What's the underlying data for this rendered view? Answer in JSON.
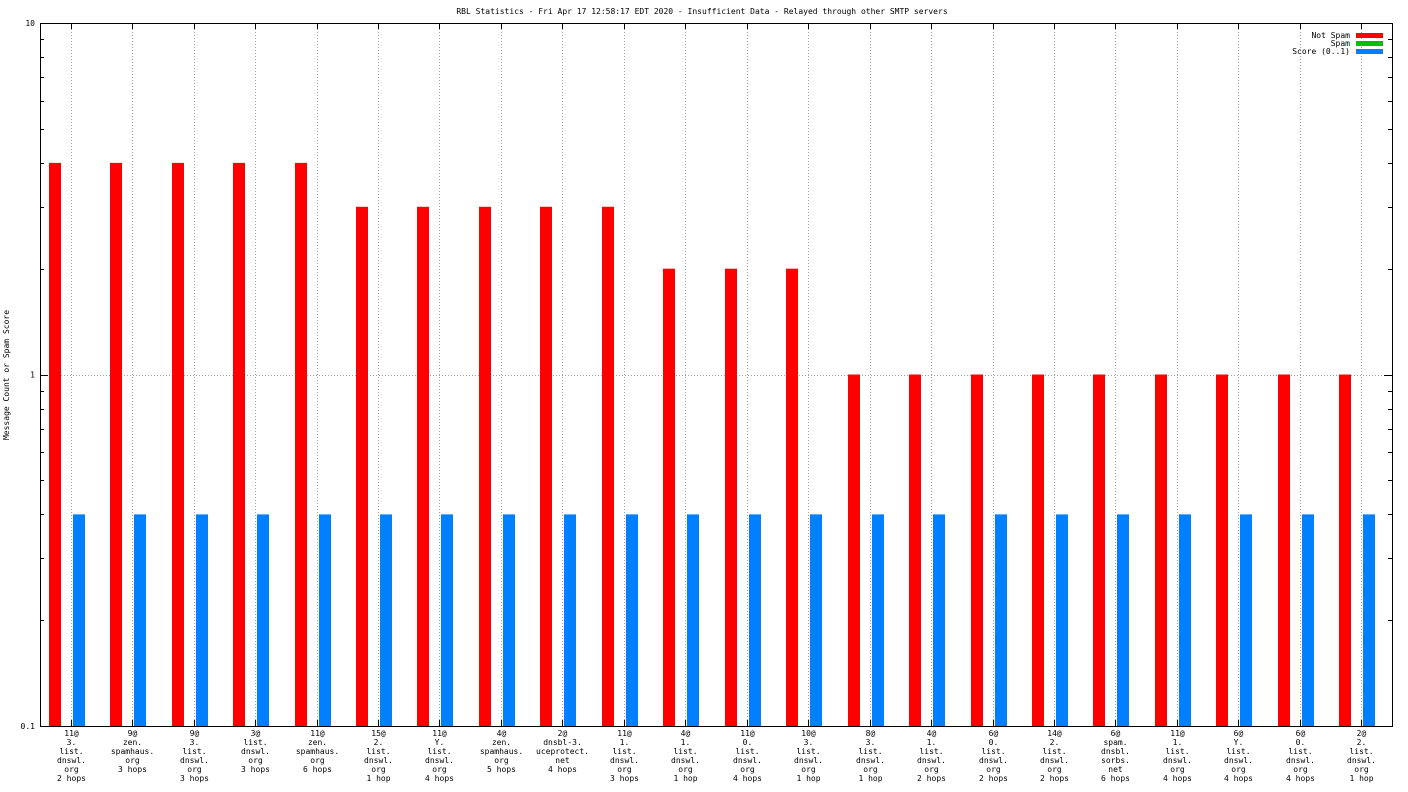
{
  "chart_data": {
    "type": "bar",
    "title": "RBL Statistics - Fri Apr 17 12:58:17 EDT 2020 - Insufficient Data - Relayed through other SMTP servers",
    "xlabel": "",
    "ylabel": "Message Count or Spam Score",
    "yscale": "log",
    "ylim": [
      0.1,
      10
    ],
    "yticks": [
      "0.1",
      "1",
      "10"
    ],
    "grid": true,
    "legend_position": "top-right",
    "categories": [
      [
        "11@",
        "3.",
        "list.",
        "dnswl.",
        "org",
        "2 hops"
      ],
      [
        "9@",
        "zen.",
        "spamhaus.",
        "org",
        "3 hops"
      ],
      [
        "9@",
        "3.",
        "list.",
        "dnswl.",
        "org",
        "3 hops"
      ],
      [
        "3@",
        "list.",
        "dnswl.",
        "org",
        "3 hops"
      ],
      [
        "11@",
        "zen.",
        "spamhaus.",
        "org",
        "6 hops"
      ],
      [
        "15@",
        "2.",
        "list.",
        "dnswl.",
        "org",
        "1 hop"
      ],
      [
        "11@",
        "Y.",
        "list.",
        "dnswl.",
        "org",
        "4 hops"
      ],
      [
        "4@",
        "zen.",
        "spamhaus.",
        "org",
        "5 hops"
      ],
      [
        "2@",
        "dnsbl-3.",
        "uceprotect.",
        "net",
        "4 hops"
      ],
      [
        "11@",
        "1.",
        "list.",
        "dnswl.",
        "org",
        "3 hops"
      ],
      [
        "4@",
        "1.",
        "list.",
        "dnswl.",
        "org",
        "1 hop"
      ],
      [
        "11@",
        "0.",
        "list.",
        "dnswl.",
        "org",
        "4 hops"
      ],
      [
        "10@",
        "3.",
        "list.",
        "dnswl.",
        "org",
        "1 hop"
      ],
      [
        "8@",
        "3.",
        "list.",
        "dnswl.",
        "org",
        "1 hop"
      ],
      [
        "4@",
        "1.",
        "list.",
        "dnswl.",
        "org",
        "2 hops"
      ],
      [
        "6@",
        "0.",
        "list.",
        "dnswl.",
        "org",
        "2 hops"
      ],
      [
        "14@",
        "2.",
        "list.",
        "dnswl.",
        "org",
        "2 hops"
      ],
      [
        "6@",
        "spam.",
        "dnsbl.",
        "sorbs.",
        "net",
        "6 hops"
      ],
      [
        "11@",
        "1.",
        "list.",
        "dnswl.",
        "org",
        "4 hops"
      ],
      [
        "6@",
        "Y.",
        "list.",
        "dnswl.",
        "org",
        "4 hops"
      ],
      [
        "6@",
        "0.",
        "list.",
        "dnswl.",
        "org",
        "4 hops"
      ],
      [
        "2@",
        "2.",
        "list.",
        "dnswl.",
        "org",
        "1 hop"
      ]
    ],
    "series": [
      {
        "name": "Not Spam",
        "color": "#ff0000",
        "values": [
          4,
          4,
          4,
          4,
          4,
          3,
          3,
          3,
          3,
          3,
          2,
          2,
          2,
          1,
          1,
          1,
          1,
          1,
          1,
          1,
          1,
          1
        ]
      },
      {
        "name": "Spam",
        "color": "#00c000",
        "values": [
          0,
          0,
          0,
          0,
          0,
          0,
          0,
          0,
          0,
          0,
          0,
          0,
          0,
          0,
          0,
          0,
          0,
          0,
          0,
          0,
          0,
          0
        ]
      },
      {
        "name": "Score (0..1)",
        "color": "#0080ff",
        "values": [
          0.4,
          0.4,
          0.4,
          0.4,
          0.4,
          0.4,
          0.4,
          0.4,
          0.4,
          0.4,
          0.4,
          0.4,
          0.4,
          0.4,
          0.4,
          0.4,
          0.4,
          0.4,
          0.4,
          0.4,
          0.4,
          0.4
        ]
      }
    ]
  }
}
